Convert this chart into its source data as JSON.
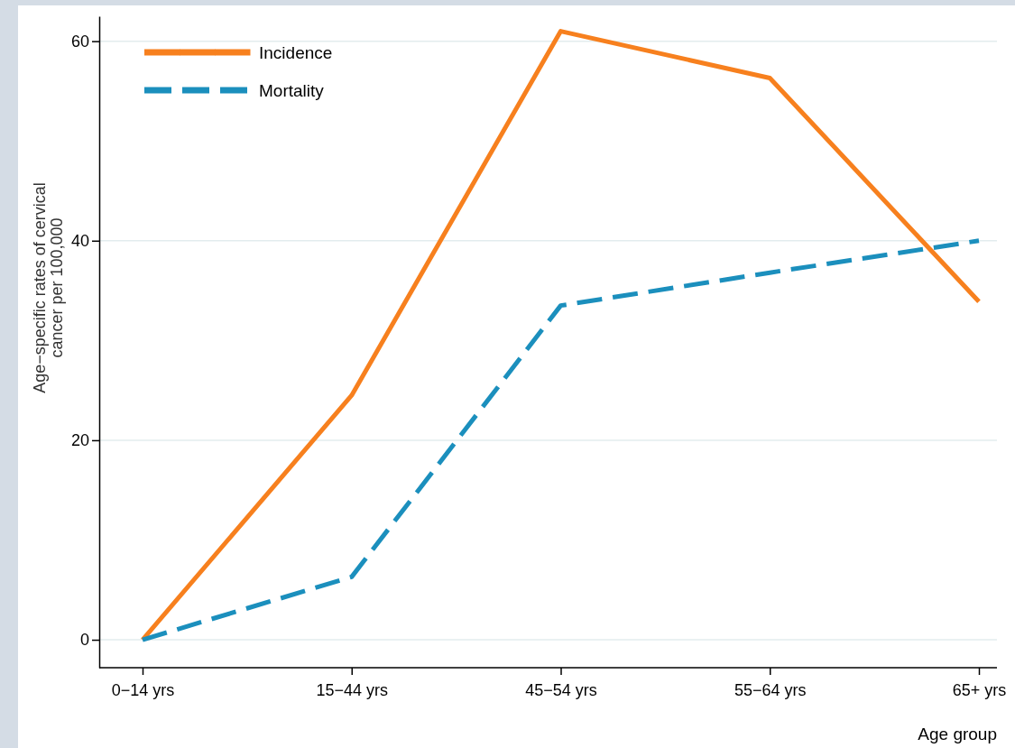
{
  "chart_data": {
    "type": "line",
    "xlabel": "Age group",
    "ylabel": "Age−specific rates of cervical cancer per 100,000",
    "categories": [
      "0−14 yrs",
      "15−44 yrs",
      "45−54 yrs",
      "55−64 yrs",
      "65+ yrs"
    ],
    "series": [
      {
        "name": "Incidence",
        "color": "#f7801e",
        "line_style": "solid",
        "values": [
          0,
          24.5,
          61,
          56.3,
          33.9
        ]
      },
      {
        "name": "Mortality",
        "color": "#1b8fbd",
        "line_style": "dashed",
        "values": [
          0,
          6.3,
          33.5,
          36.8,
          40
        ]
      }
    ],
    "ylim": [
      -2.8,
      62.5
    ],
    "yticks": [
      0,
      20,
      40,
      60
    ],
    "grid": "y",
    "legend": "top left",
    "marker": "none"
  }
}
